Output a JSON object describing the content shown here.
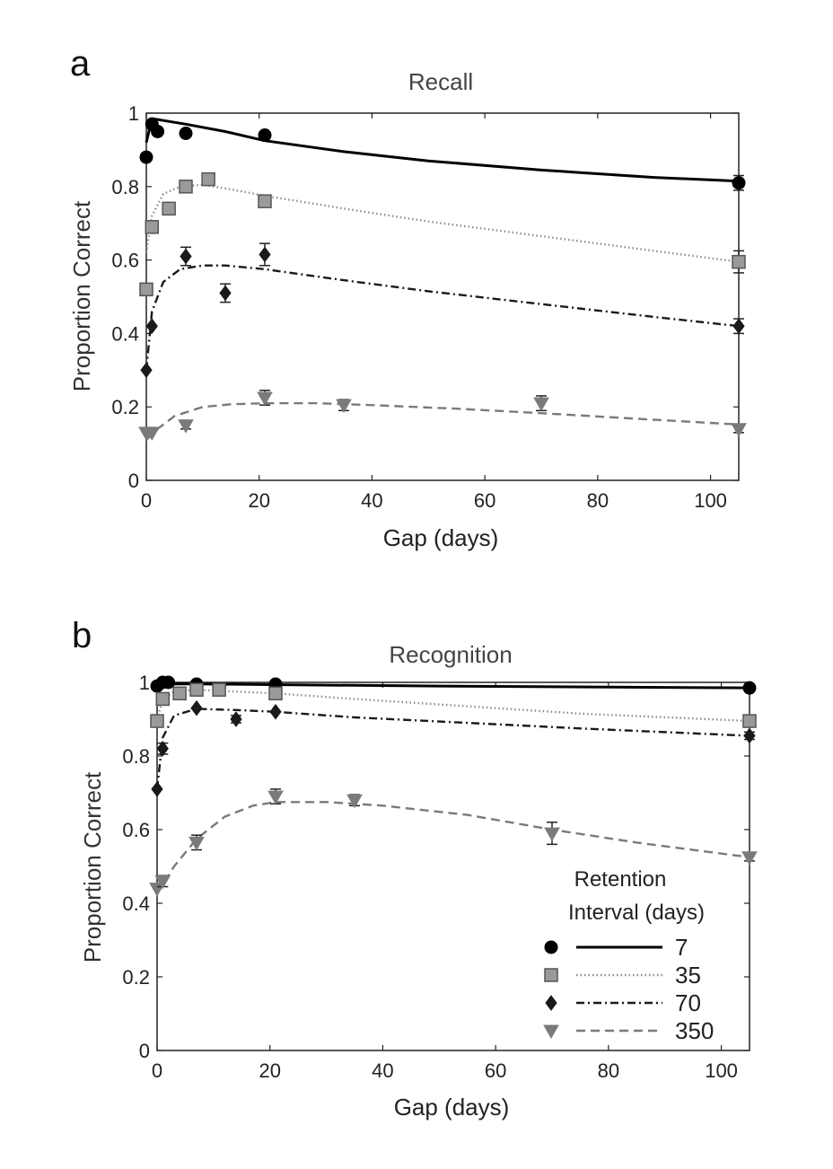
{
  "legend": {
    "title_line1": "Retention",
    "title_line2": "Interval (days)",
    "entries": [
      {
        "label": "7",
        "series": "ri7"
      },
      {
        "label": "35",
        "series": "ri35"
      },
      {
        "label": "70",
        "series": "ri70"
      },
      {
        "label": "350",
        "series": "ri350"
      }
    ]
  },
  "series_styles": {
    "ri7": {
      "marker": "circle",
      "marker_fill": "#000000",
      "line_color": "#000000",
      "dash": ""
    },
    "ri35": {
      "marker": "square",
      "marker_fill": "#9a9a9a",
      "line_color": "#8c8c8c",
      "dash": "1.5,3"
    },
    "ri70": {
      "marker": "diamond",
      "marker_fill": "#1a1a1a",
      "line_color": "#1a1a1a",
      "dash": "9,4,2,4"
    },
    "ri350": {
      "marker": "triangle",
      "marker_fill": "#7a7a7a",
      "line_color": "#7a7a7a",
      "dash": "10,6"
    }
  },
  "chart_data": [
    {
      "id": "recall",
      "type": "line",
      "panel_label": "a",
      "title": "Recall",
      "xlabel": "Gap (days)",
      "ylabel": "Proportion Correct",
      "xlim": [
        0,
        105
      ],
      "ylim": [
        0,
        1
      ],
      "xticks": [
        0,
        20,
        40,
        60,
        80,
        100
      ],
      "yticks": [
        0,
        0.2,
        0.4,
        0.6,
        0.8,
        1
      ],
      "ytick_labels": [
        "0",
        "0.2",
        "0.4",
        "0.6",
        "0.8",
        "1"
      ],
      "series": [
        {
          "key": "ri7",
          "name": "7",
          "points": [
            [
              0,
              0.88
            ],
            [
              1,
              0.97
            ],
            [
              2,
              0.95
            ],
            [
              7,
              0.945
            ],
            [
              21,
              0.94
            ],
            [
              105,
              0.81
            ]
          ],
          "errors": [
            0,
            0,
            0,
            0,
            0,
            0.02
          ],
          "fit": [
            [
              0,
              0.92
            ],
            [
              1,
              0.985
            ],
            [
              3,
              0.98
            ],
            [
              7,
              0.97
            ],
            [
              14,
              0.95
            ],
            [
              21,
              0.925
            ],
            [
              35,
              0.895
            ],
            [
              50,
              0.87
            ],
            [
              70,
              0.845
            ],
            [
              90,
              0.825
            ],
            [
              105,
              0.815
            ]
          ]
        },
        {
          "key": "ri35",
          "name": "35",
          "points": [
            [
              0,
              0.52
            ],
            [
              1,
              0.69
            ],
            [
              4,
              0.74
            ],
            [
              7,
              0.8
            ],
            [
              11,
              0.82
            ],
            [
              21,
              0.76
            ],
            [
              105,
              0.595
            ]
          ],
          "errors": [
            0,
            0,
            0,
            0,
            0,
            0,
            0.03
          ],
          "fit": [
            [
              0,
              0.62
            ],
            [
              1,
              0.72
            ],
            [
              3,
              0.78
            ],
            [
              6,
              0.8
            ],
            [
              10,
              0.805
            ],
            [
              14,
              0.795
            ],
            [
              21,
              0.775
            ],
            [
              35,
              0.74
            ],
            [
              50,
              0.705
            ],
            [
              70,
              0.665
            ],
            [
              90,
              0.625
            ],
            [
              105,
              0.595
            ]
          ]
        },
        {
          "key": "ri70",
          "name": "70",
          "points": [
            [
              0,
              0.3
            ],
            [
              1,
              0.42
            ],
            [
              7,
              0.61
            ],
            [
              14,
              0.51
            ],
            [
              21,
              0.615
            ],
            [
              105,
              0.42
            ]
          ],
          "errors": [
            0,
            0,
            0.025,
            0.025,
            0.03,
            0.02
          ],
          "fit": [
            [
              0,
              0.3
            ],
            [
              1,
              0.46
            ],
            [
              3,
              0.54
            ],
            [
              6,
              0.575
            ],
            [
              10,
              0.585
            ],
            [
              14,
              0.585
            ],
            [
              21,
              0.575
            ],
            [
              35,
              0.545
            ],
            [
              50,
              0.515
            ],
            [
              70,
              0.48
            ],
            [
              90,
              0.445
            ],
            [
              105,
              0.42
            ]
          ]
        },
        {
          "key": "ri350",
          "name": "350",
          "points": [
            [
              0,
              0.13
            ],
            [
              1,
              0.13
            ],
            [
              7,
              0.15
            ],
            [
              21,
              0.225
            ],
            [
              35,
              0.205
            ],
            [
              70,
              0.21
            ],
            [
              105,
              0.14
            ]
          ],
          "errors": [
            0,
            0,
            0.01,
            0.02,
            0.015,
            0.02,
            0.01
          ],
          "fit": [
            [
              0,
              0.11
            ],
            [
              2,
              0.14
            ],
            [
              5,
              0.175
            ],
            [
              10,
              0.2
            ],
            [
              15,
              0.207
            ],
            [
              21,
              0.21
            ],
            [
              30,
              0.21
            ],
            [
              40,
              0.205
            ],
            [
              55,
              0.195
            ],
            [
              70,
              0.183
            ],
            [
              90,
              0.165
            ],
            [
              105,
              0.152
            ]
          ]
        }
      ]
    },
    {
      "id": "recognition",
      "type": "line",
      "panel_label": "b",
      "title": "Recognition",
      "xlabel": "Gap (days)",
      "ylabel": "Proportion Correct",
      "xlim": [
        0,
        105
      ],
      "ylim": [
        0,
        1
      ],
      "xticks": [
        0,
        20,
        40,
        60,
        80,
        100
      ],
      "yticks": [
        0,
        0.2,
        0.4,
        0.6,
        0.8,
        1
      ],
      "ytick_labels": [
        "0",
        "0.2",
        "0.4",
        "0.6",
        "0.8",
        "1"
      ],
      "series": [
        {
          "key": "ri7",
          "name": "7",
          "points": [
            [
              0,
              0.99
            ],
            [
              1,
              1.0
            ],
            [
              2,
              1.0
            ],
            [
              7,
              0.995
            ],
            [
              21,
              0.995
            ],
            [
              105,
              0.985
            ]
          ],
          "errors": [
            0,
            0,
            0,
            0,
            0,
            0
          ],
          "fit": [
            [
              0,
              0.97
            ],
            [
              1,
              0.995
            ],
            [
              5,
              0.996
            ],
            [
              20,
              0.994
            ],
            [
              50,
              0.99
            ],
            [
              80,
              0.987
            ],
            [
              105,
              0.985
            ]
          ]
        },
        {
          "key": "ri35",
          "name": "35",
          "points": [
            [
              0,
              0.895
            ],
            [
              1,
              0.955
            ],
            [
              4,
              0.97
            ],
            [
              7,
              0.98
            ],
            [
              11,
              0.98
            ],
            [
              21,
              0.97
            ],
            [
              105,
              0.895
            ]
          ],
          "errors": [
            0,
            0,
            0,
            0,
            0,
            0,
            0.015
          ],
          "fit": [
            [
              0,
              0.9
            ],
            [
              1,
              0.955
            ],
            [
              3,
              0.975
            ],
            [
              7,
              0.98
            ],
            [
              14,
              0.975
            ],
            [
              21,
              0.97
            ],
            [
              35,
              0.955
            ],
            [
              55,
              0.935
            ],
            [
              75,
              0.915
            ],
            [
              105,
              0.895
            ]
          ]
        },
        {
          "key": "ri70",
          "name": "70",
          "points": [
            [
              0,
              0.71
            ],
            [
              1,
              0.82
            ],
            [
              7,
              0.93
            ],
            [
              14,
              0.9
            ],
            [
              21,
              0.92
            ],
            [
              105,
              0.855
            ]
          ],
          "errors": [
            0,
            0.015,
            0,
            0.01,
            0,
            0.01
          ],
          "fit": [
            [
              0,
              0.71
            ],
            [
              1,
              0.85
            ],
            [
              3,
              0.91
            ],
            [
              7,
              0.928
            ],
            [
              14,
              0.925
            ],
            [
              21,
              0.92
            ],
            [
              35,
              0.905
            ],
            [
              55,
              0.89
            ],
            [
              75,
              0.875
            ],
            [
              105,
              0.855
            ]
          ]
        },
        {
          "key": "ri350",
          "name": "350",
          "points": [
            [
              0,
              0.44
            ],
            [
              1,
              0.46
            ],
            [
              7,
              0.565
            ],
            [
              21,
              0.69
            ],
            [
              35,
              0.68
            ],
            [
              70,
              0.59
            ],
            [
              105,
              0.525
            ]
          ],
          "errors": [
            0,
            0.015,
            0.02,
            0.02,
            0.015,
            0.03,
            0.01
          ],
          "fit": [
            [
              0,
              0.425
            ],
            [
              3,
              0.5
            ],
            [
              7,
              0.575
            ],
            [
              12,
              0.635
            ],
            [
              17,
              0.665
            ],
            [
              21,
              0.675
            ],
            [
              30,
              0.675
            ],
            [
              40,
              0.665
            ],
            [
              55,
              0.64
            ],
            [
              70,
              0.6
            ],
            [
              85,
              0.565
            ],
            [
              105,
              0.525
            ]
          ]
        }
      ]
    }
  ]
}
